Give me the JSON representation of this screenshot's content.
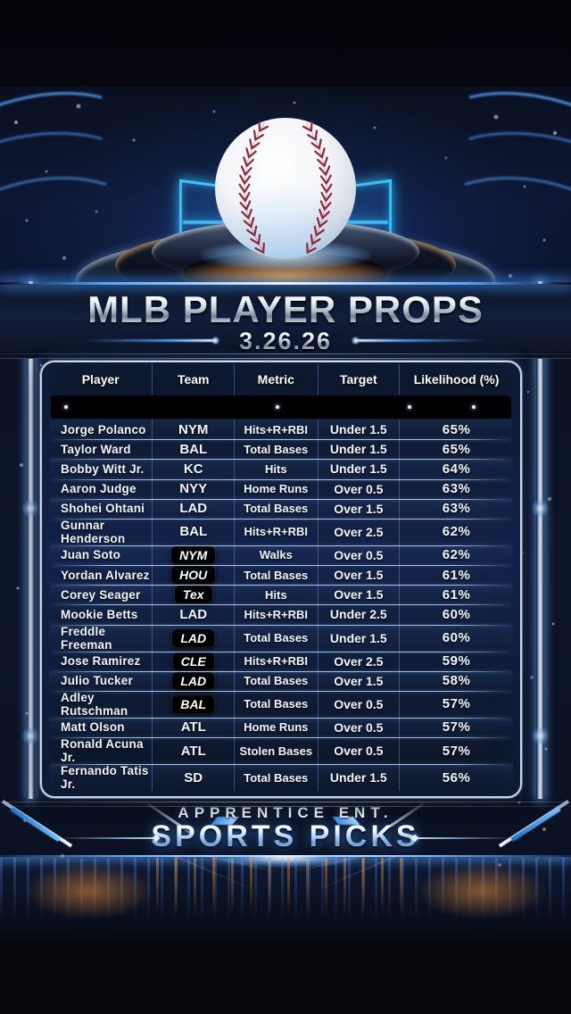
{
  "chart_data": {
    "type": "table",
    "title": "MLB PLAYER PROPS",
    "date": "3.26.26",
    "columns": [
      "Player",
      "Team",
      "Metric",
      "Target",
      "Likelihood (%)"
    ],
    "rows": [
      {
        "player": "Jorge Polanco",
        "team": "NYM",
        "team_badge": false,
        "metric": "Hits+R+RBI",
        "target": "Under 1.5",
        "likelihood": "65%"
      },
      {
        "player": "Taylor Ward",
        "team": "BAL",
        "team_badge": false,
        "metric": "Total Bases",
        "target": "Under 1.5",
        "likelihood": "65%"
      },
      {
        "player": "Bobby Witt Jr.",
        "team": "KC",
        "team_badge": false,
        "metric": "Hits",
        "target": "Under 1.5",
        "likelihood": "64%"
      },
      {
        "player": "Aaron Judge",
        "team": "NYY",
        "team_badge": false,
        "metric": "Home Runs",
        "target": "Over 0.5",
        "likelihood": "63%"
      },
      {
        "player": "Shohei Ohtani",
        "team": "LAD",
        "team_badge": false,
        "metric": "Total Bases",
        "target": "Over 1.5",
        "likelihood": "63%"
      },
      {
        "player": "Gunnar Henderson",
        "team": "BAL",
        "team_badge": false,
        "metric": "Hits+R+RBI",
        "target": "Over 2.5",
        "likelihood": "62%"
      },
      {
        "player": "Juan Soto",
        "team": "NYM",
        "team_badge": true,
        "metric": "Walks",
        "target": "Over 0.5",
        "likelihood": "62%"
      },
      {
        "player": "Yordan Alvarez",
        "team": "HOU",
        "team_badge": true,
        "metric": "Total Bases",
        "target": "Over 1.5",
        "likelihood": "61%"
      },
      {
        "player": "Corey Seager",
        "team": "Tex",
        "team_badge": true,
        "metric": "Hits",
        "target": "Over 1.5",
        "likelihood": "61%"
      },
      {
        "player": "Mookie Betts",
        "team": "LAD",
        "team_badge": false,
        "metric": "Hits+R+RBI",
        "target": "Under 2.5",
        "likelihood": "60%"
      },
      {
        "player": "Freddle Freeman",
        "team": "LAD",
        "team_badge": true,
        "metric": "Total Bases",
        "target": "Under 1.5",
        "likelihood": "60%"
      },
      {
        "player": "Jose Ramirez",
        "team": "CLE",
        "team_badge": true,
        "metric": "Hits+R+RBI",
        "target": "Over 2.5",
        "likelihood": "59%"
      },
      {
        "player": "Julio Tucker",
        "team": "LAD",
        "team_badge": true,
        "metric": "Total Bases",
        "target": "Over 1.5",
        "likelihood": "58%"
      },
      {
        "player": "Adley Rutschman",
        "team": "BAL",
        "team_badge": true,
        "metric": "Total Bases",
        "target": "Over 0.5",
        "likelihood": "57%"
      },
      {
        "player": "Matt Olson",
        "team": "ATL",
        "team_badge": false,
        "metric": "Home Runs",
        "target": "Over 0.5",
        "likelihood": "57%"
      },
      {
        "player": "Ronald Acuna Jr.",
        "team": "ATL",
        "team_badge": false,
        "metric": "Stolen Bases",
        "target": "Over 0.5",
        "likelihood": "57%"
      },
      {
        "player": "Fernando Tatis Jr.",
        "team": "SD",
        "team_badge": false,
        "metric": "Total Bases",
        "target": "Under 1.5",
        "likelihood": "56%"
      }
    ],
    "legend_position": "none",
    "grid": true
  },
  "footer": {
    "brand_line1": "APPRENTICE ENT.",
    "brand_line2": "SPORTS PICKS"
  },
  "hero": {
    "icon": "baseball-icon"
  },
  "colors": {
    "accent_blue": "#3fa9ff",
    "deep_navy": "#0c1526",
    "table_border": "#cdd7e5",
    "badge_bg": "#000000",
    "seam_red": "#932639",
    "amber_glow": "#ffb455"
  }
}
